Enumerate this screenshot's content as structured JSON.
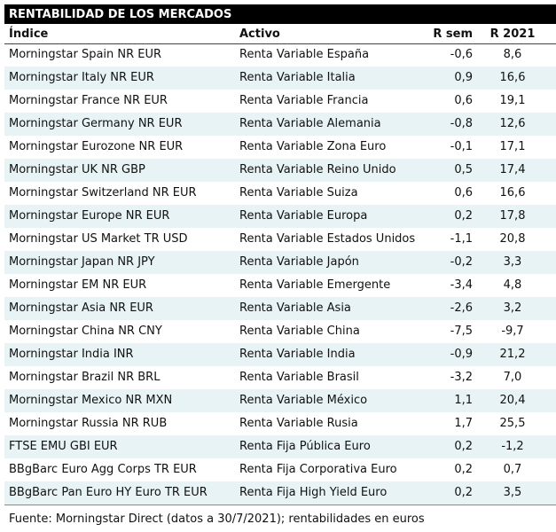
{
  "title": "RENTABILIDAD DE LOS MERCADOS",
  "headers": {
    "indice": "Índice",
    "activo": "Activo",
    "rsem": "R sem",
    "r2021": "R 2021"
  },
  "rows": [
    {
      "indice": "Morningstar Spain NR EUR",
      "activo": "Renta Variable España",
      "rsem": "-0,6",
      "r2021": "8,6"
    },
    {
      "indice": "Morningstar Italy NR EUR",
      "activo": "Renta Variable Italia",
      "rsem": "0,9",
      "r2021": "16,6"
    },
    {
      "indice": "Morningstar France NR EUR",
      "activo": "Renta Variable Francia",
      "rsem": "0,6",
      "r2021": "19,1"
    },
    {
      "indice": "Morningstar Germany NR EUR",
      "activo": "Renta Variable Alemania",
      "rsem": "-0,8",
      "r2021": "12,6"
    },
    {
      "indice": "Morningstar Eurozone NR EUR",
      "activo": "Renta Variable Zona Euro",
      "rsem": "-0,1",
      "r2021": "17,1"
    },
    {
      "indice": "Morningstar UK NR GBP",
      "activo": "Renta Variable Reino Unido",
      "rsem": "0,5",
      "r2021": "17,4"
    },
    {
      "indice": "Morningstar Switzerland NR EUR",
      "activo": "Renta Variable Suiza",
      "rsem": "0,6",
      "r2021": "16,6"
    },
    {
      "indice": "Morningstar Europe NR EUR",
      "activo": "Renta Variable Europa",
      "rsem": "0,2",
      "r2021": "17,8"
    },
    {
      "indice": "Morningstar US Market TR USD",
      "activo": "Renta Variable Estados Unidos",
      "rsem": "-1,1",
      "r2021": "20,8"
    },
    {
      "indice": "Morningstar Japan NR JPY",
      "activo": "Renta Variable Japón",
      "rsem": "-0,2",
      "r2021": "3,3"
    },
    {
      "indice": "Morningstar EM NR EUR",
      "activo": "Renta Variable Emergente",
      "rsem": "-3,4",
      "r2021": "4,8"
    },
    {
      "indice": "Morningstar Asia NR EUR",
      "activo": "Renta Variable Asia",
      "rsem": "-2,6",
      "r2021": "3,2"
    },
    {
      "indice": "Morningstar China NR CNY",
      "activo": "Renta Variable China",
      "rsem": "-7,5",
      "r2021": "-9,7"
    },
    {
      "indice": "Morningstar India INR",
      "activo": "Renta Variable India",
      "rsem": "-0,9",
      "r2021": "21,2"
    },
    {
      "indice": "Morningstar Brazil NR BRL",
      "activo": "Renta Variable Brasil",
      "rsem": "-3,2",
      "r2021": "7,0"
    },
    {
      "indice": "Morningstar Mexico NR MXN",
      "activo": "Renta Variable México",
      "rsem": "1,1",
      "r2021": "20,4"
    },
    {
      "indice": "Morningstar Russia NR RUB",
      "activo": "Renta Variable Rusia",
      "rsem": "1,7",
      "r2021": "25,5"
    },
    {
      "indice": "FTSE EMU GBI EUR",
      "activo": "Renta Fija Pública Euro",
      "rsem": "0,2",
      "r2021": "-1,2"
    },
    {
      "indice": "BBgBarc Euro Agg Corps TR EUR",
      "activo": "Renta Fija Corporativa Euro",
      "rsem": "0,2",
      "r2021": "0,7"
    },
    {
      "indice": "BBgBarc Pan Euro HY Euro TR EUR",
      "activo": "Renta Fija High Yield Euro",
      "rsem": "0,2",
      "r2021": "3,5"
    }
  ],
  "footer": "Fuente: Morningstar Direct (datos a 30/7/2021); rentabilidades en euros"
}
